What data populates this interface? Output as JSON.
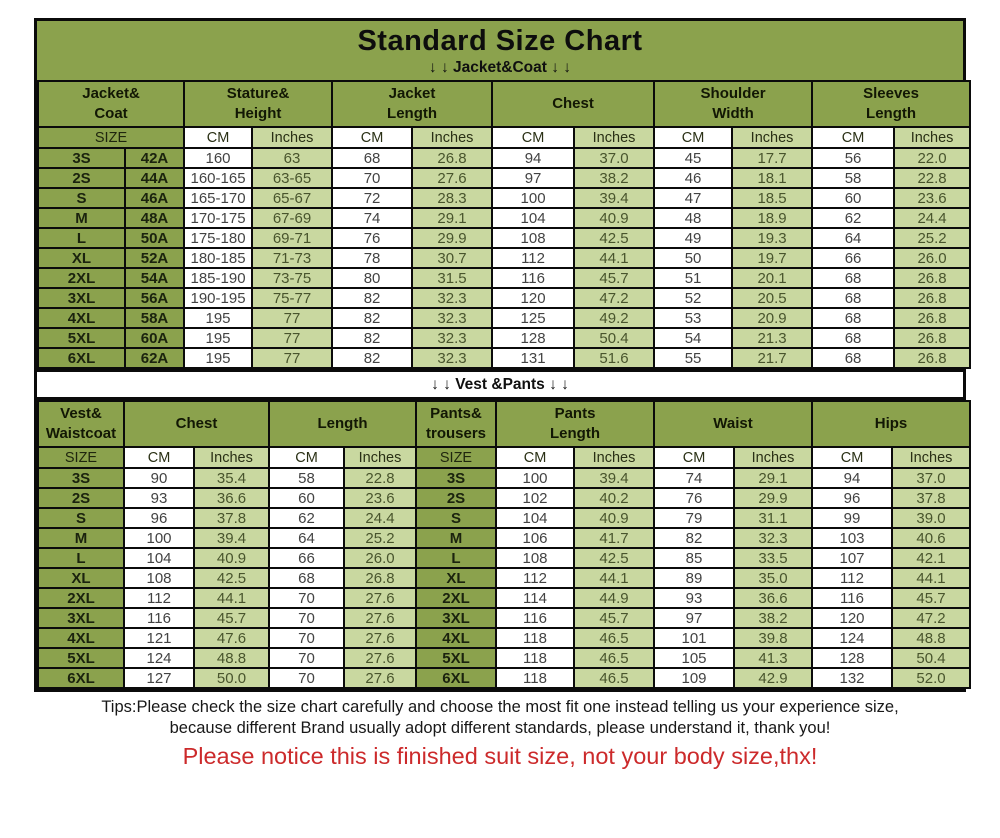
{
  "page": {
    "title": "Standard Size Chart",
    "jacket_section_label": "↓ ↓  Jacket&Coat ↓ ↓",
    "vest_section_label": "↓ ↓  Vest &Pants ↓ ↓",
    "tips_line1": "Tips:Please check the size chart carefully and choose the most fit one instead telling us your experience size,",
    "tips_line2": "because different Brand usually adopt different standards, please understand it, thank you!",
    "notice": "Please notice this is finished suit size, not your body size,thx!"
  },
  "colors": {
    "header_green": "#8ba24d",
    "light_green": "#c9d8a0",
    "cell_white": "#ffffff",
    "notice_red": "#cc2a2b",
    "border_black": "#0b0b0b"
  },
  "chart_data": [
    {
      "type": "table",
      "title": "Jacket&Coat",
      "column_groups": [
        {
          "label": "Jacket&\nCoat",
          "span": 2
        },
        {
          "label": "Stature&\nHeight",
          "span": 2
        },
        {
          "label": "Jacket\nLength",
          "span": 2
        },
        {
          "label": "Chest",
          "span": 2
        },
        {
          "label": "Shoulder\nWidth",
          "span": 2
        },
        {
          "label": "Sleeves\nLength",
          "span": 2
        }
      ],
      "size_row": [
        {
          "label": "SIZE",
          "span": 2
        },
        {
          "label": "CM"
        },
        {
          "label": "Inches"
        },
        {
          "label": "CM"
        },
        {
          "label": "Inches"
        },
        {
          "label": "CM"
        },
        {
          "label": "Inches"
        },
        {
          "label": "CM"
        },
        {
          "label": "Inches"
        },
        {
          "label": "CM"
        },
        {
          "label": "Inches"
        }
      ],
      "rows": [
        [
          "3S",
          "42A",
          "160",
          "63",
          "68",
          "26.8",
          "94",
          "37.0",
          "45",
          "17.7",
          "56",
          "22.0"
        ],
        [
          "2S",
          "44A",
          "160-165",
          "63-65",
          "70",
          "27.6",
          "97",
          "38.2",
          "46",
          "18.1",
          "58",
          "22.8"
        ],
        [
          "S",
          "46A",
          "165-170",
          "65-67",
          "72",
          "28.3",
          "100",
          "39.4",
          "47",
          "18.5",
          "60",
          "23.6"
        ],
        [
          "M",
          "48A",
          "170-175",
          "67-69",
          "74",
          "29.1",
          "104",
          "40.9",
          "48",
          "18.9",
          "62",
          "24.4"
        ],
        [
          "L",
          "50A",
          "175-180",
          "69-71",
          "76",
          "29.9",
          "108",
          "42.5",
          "49",
          "19.3",
          "64",
          "25.2"
        ],
        [
          "XL",
          "52A",
          "180-185",
          "71-73",
          "78",
          "30.7",
          "112",
          "44.1",
          "50",
          "19.7",
          "66",
          "26.0"
        ],
        [
          "2XL",
          "54A",
          "185-190",
          "73-75",
          "80",
          "31.5",
          "116",
          "45.7",
          "51",
          "20.1",
          "68",
          "26.8"
        ],
        [
          "3XL",
          "56A",
          "190-195",
          "75-77",
          "82",
          "32.3",
          "120",
          "47.2",
          "52",
          "20.5",
          "68",
          "26.8"
        ],
        [
          "4XL",
          "58A",
          "195",
          "77",
          "82",
          "32.3",
          "125",
          "49.2",
          "53",
          "20.9",
          "68",
          "26.8"
        ],
        [
          "5XL",
          "60A",
          "195",
          "77",
          "82",
          "32.3",
          "128",
          "50.4",
          "54",
          "21.3",
          "68",
          "26.8"
        ],
        [
          "6XL",
          "62A",
          "195",
          "77",
          "82",
          "32.3",
          "131",
          "51.6",
          "55",
          "21.7",
          "68",
          "26.8"
        ]
      ]
    },
    {
      "type": "table",
      "title": "Vest &Pants",
      "column_groups": [
        {
          "label": "Vest&\nWaistcoat",
          "span": 1
        },
        {
          "label": "Chest",
          "span": 2
        },
        {
          "label": "Length",
          "span": 2
        },
        {
          "label": "Pants&\ntrousers",
          "span": 1
        },
        {
          "label": "Pants\nLength",
          "span": 2
        },
        {
          "label": "Waist",
          "span": 2
        },
        {
          "label": "Hips",
          "span": 2
        }
      ],
      "size_row": [
        {
          "label": "SIZE"
        },
        {
          "label": "CM"
        },
        {
          "label": "Inches"
        },
        {
          "label": "CM"
        },
        {
          "label": "Inches"
        },
        {
          "label": "SIZE"
        },
        {
          "label": "CM"
        },
        {
          "label": "Inches"
        },
        {
          "label": "CM"
        },
        {
          "label": "Inches"
        },
        {
          "label": "CM"
        },
        {
          "label": "Inches"
        }
      ],
      "rows": [
        [
          "3S",
          "90",
          "35.4",
          "58",
          "22.8",
          "3S",
          "100",
          "39.4",
          "74",
          "29.1",
          "94",
          "37.0"
        ],
        [
          "2S",
          "93",
          "36.6",
          "60",
          "23.6",
          "2S",
          "102",
          "40.2",
          "76",
          "29.9",
          "96",
          "37.8"
        ],
        [
          "S",
          "96",
          "37.8",
          "62",
          "24.4",
          "S",
          "104",
          "40.9",
          "79",
          "31.1",
          "99",
          "39.0"
        ],
        [
          "M",
          "100",
          "39.4",
          "64",
          "25.2",
          "M",
          "106",
          "41.7",
          "82",
          "32.3",
          "103",
          "40.6"
        ],
        [
          "L",
          "104",
          "40.9",
          "66",
          "26.0",
          "L",
          "108",
          "42.5",
          "85",
          "33.5",
          "107",
          "42.1"
        ],
        [
          "XL",
          "108",
          "42.5",
          "68",
          "26.8",
          "XL",
          "112",
          "44.1",
          "89",
          "35.0",
          "112",
          "44.1"
        ],
        [
          "2XL",
          "112",
          "44.1",
          "70",
          "27.6",
          "2XL",
          "114",
          "44.9",
          "93",
          "36.6",
          "116",
          "45.7"
        ],
        [
          "3XL",
          "116",
          "45.7",
          "70",
          "27.6",
          "3XL",
          "116",
          "45.7",
          "97",
          "38.2",
          "120",
          "47.2"
        ],
        [
          "4XL",
          "121",
          "47.6",
          "70",
          "27.6",
          "4XL",
          "118",
          "46.5",
          "101",
          "39.8",
          "124",
          "48.8"
        ],
        [
          "5XL",
          "124",
          "48.8",
          "70",
          "27.6",
          "5XL",
          "118",
          "46.5",
          "105",
          "41.3",
          "128",
          "50.4"
        ],
        [
          "6XL",
          "127",
          "50.0",
          "70",
          "27.6",
          "6XL",
          "118",
          "46.5",
          "109",
          "42.9",
          "132",
          "52.0"
        ]
      ]
    }
  ]
}
